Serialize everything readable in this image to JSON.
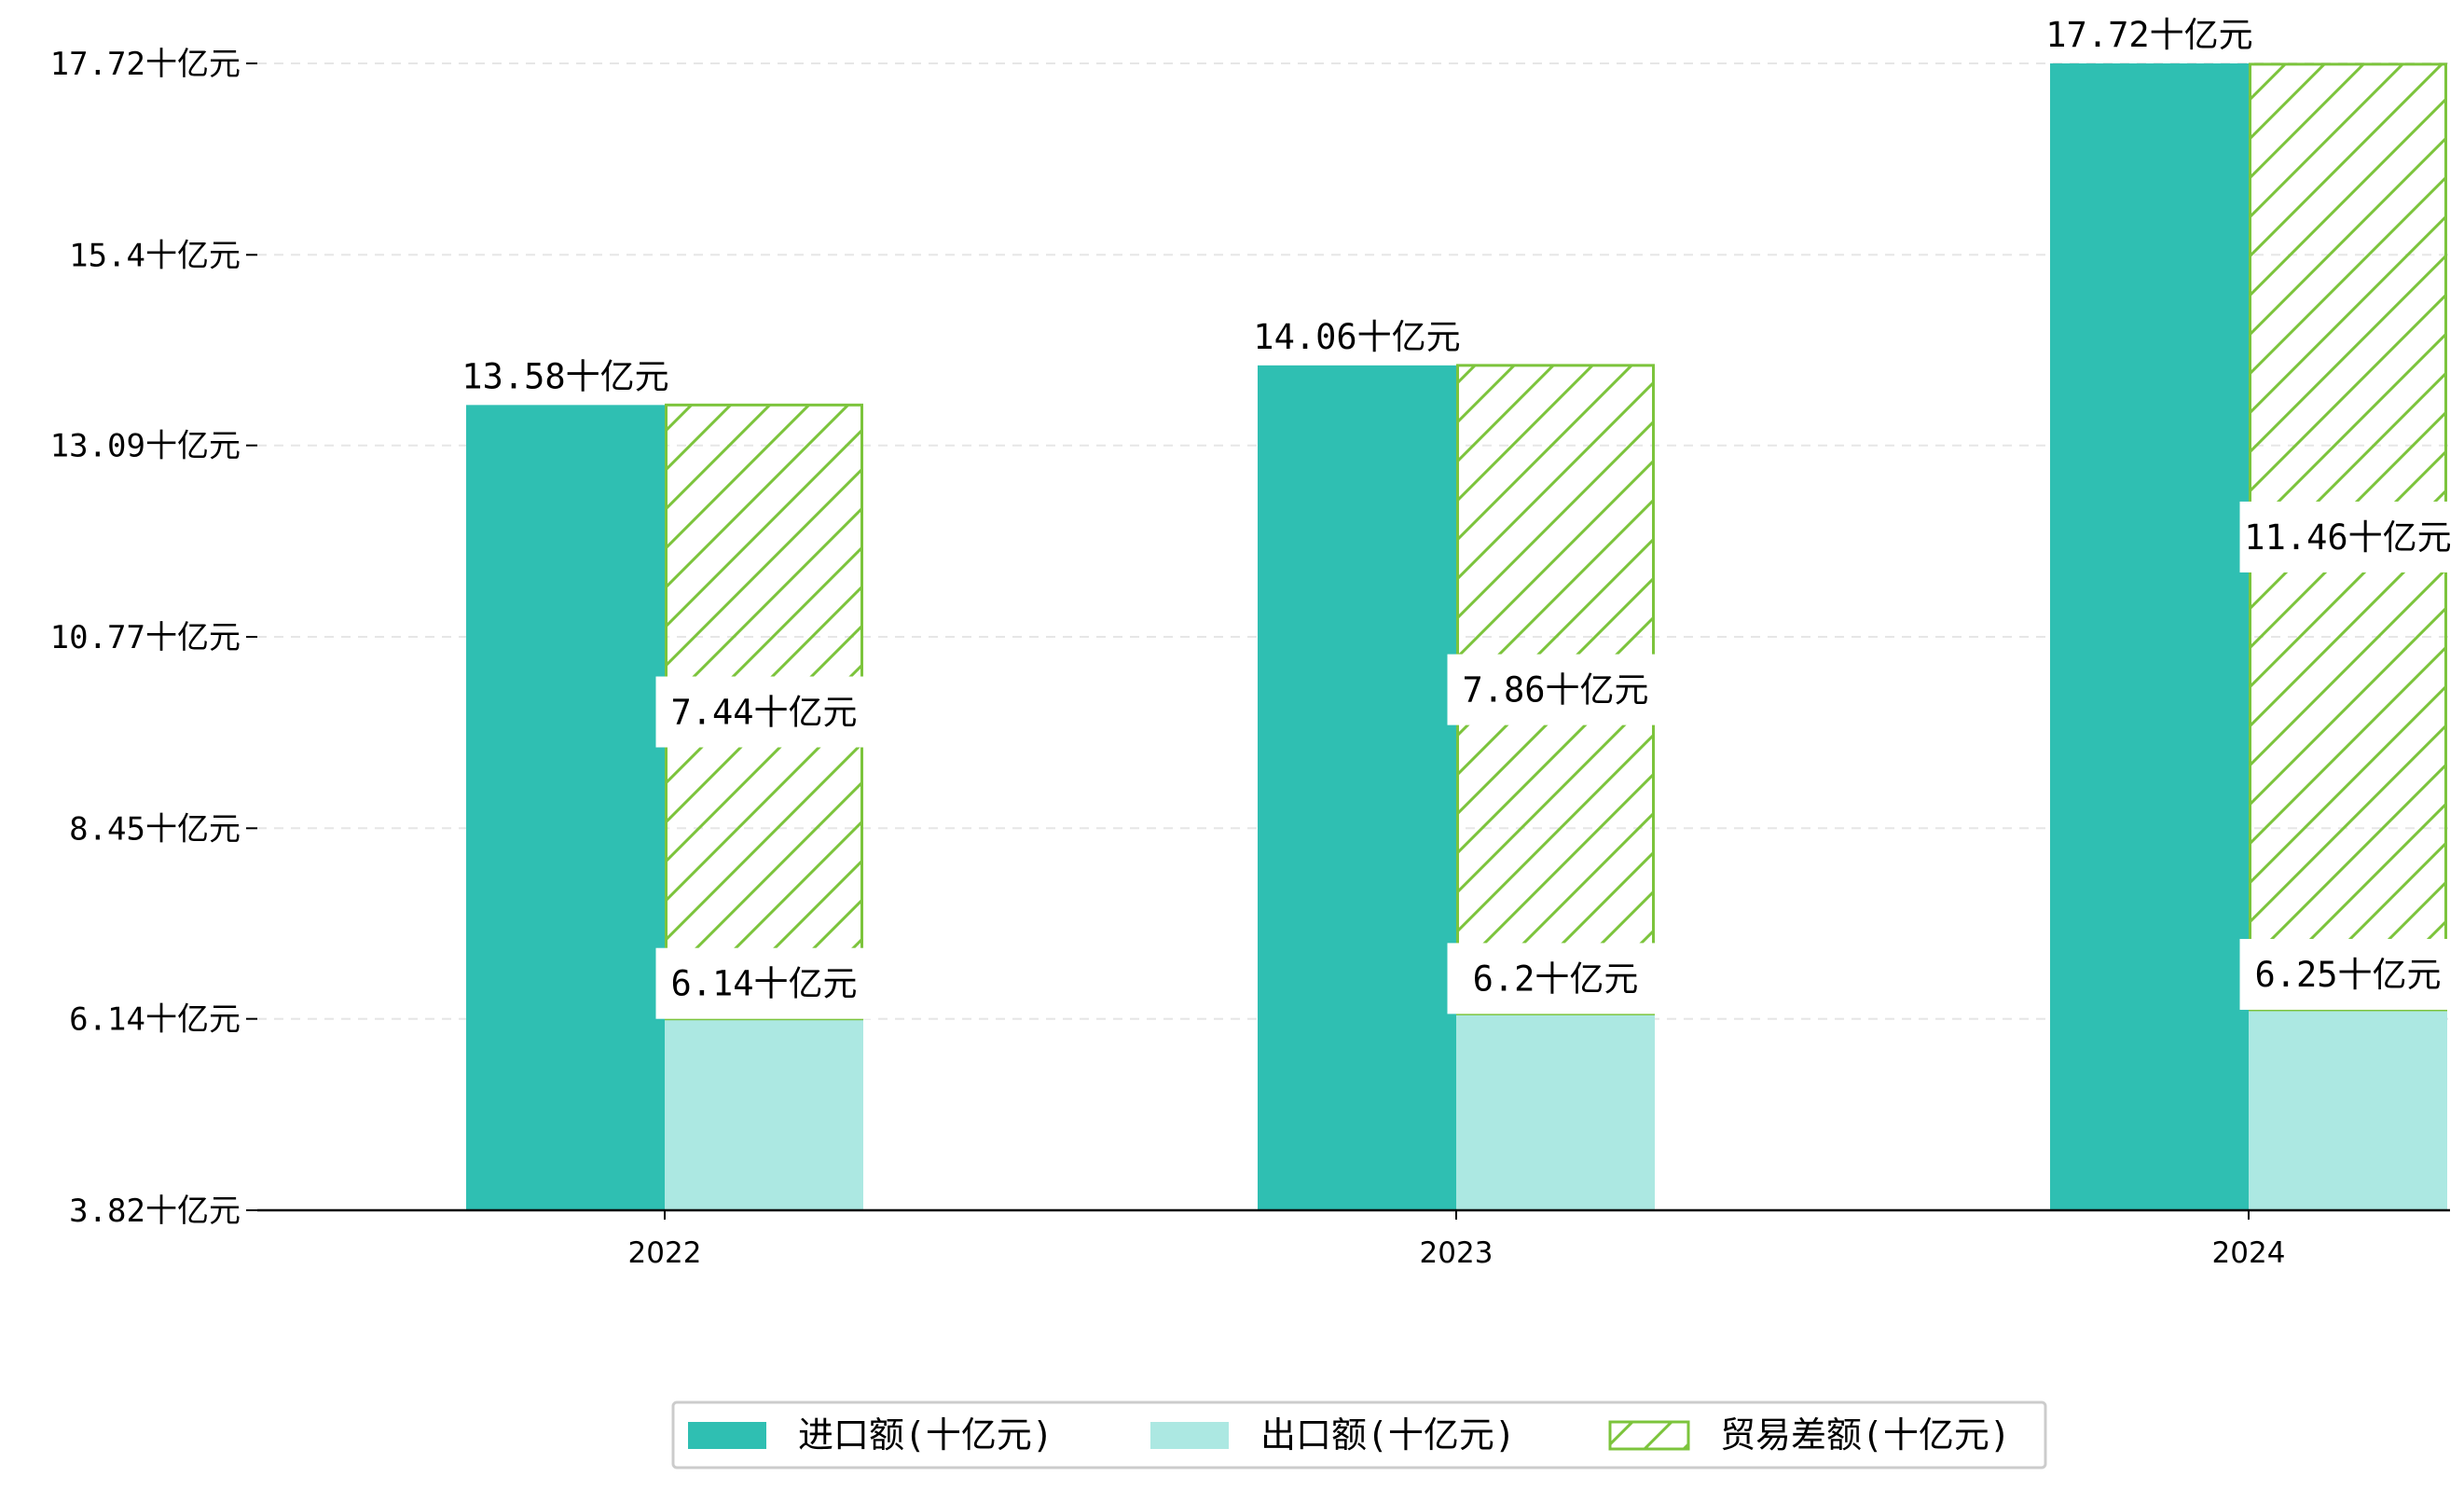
{
  "chart_data": {
    "type": "bar",
    "categories": [
      "2022",
      "2023",
      "2024"
    ],
    "series": [
      {
        "name": "进口额(十亿元)",
        "values": [
          13.58,
          14.06,
          17.72
        ],
        "color": "#2fbfb2"
      },
      {
        "name": "出口额(十亿元)",
        "values": [
          6.14,
          6.2,
          6.25
        ],
        "color": "#ace8e2"
      },
      {
        "name": "贸易差额(十亿元)",
        "values": [
          7.44,
          7.86,
          11.46
        ],
        "color": "#7cc43c",
        "hatch": "diagonal",
        "stacked_on": "出口额(十亿元)"
      }
    ],
    "data_labels": {
      "import": [
        "13.58十亿元",
        "14.06十亿元",
        "17.72十亿元"
      ],
      "export": [
        "6.14十亿元",
        "6.2十亿元",
        "6.25十亿元"
      ],
      "balance": [
        "7.44十亿元",
        "7.86十亿元",
        "11.46十亿元"
      ]
    },
    "y_ticks": [
      3.82,
      6.14,
      8.45,
      10.77,
      13.09,
      15.4,
      17.72
    ],
    "y_tick_labels": [
      "3.82十亿元",
      "6.14十亿元",
      "8.45十亿元",
      "10.77十亿元",
      "13.09十亿元",
      "15.4十亿元",
      "17.72十亿元"
    ],
    "ylim": [
      3.82,
      17.72
    ],
    "grid": "horizontal dashed",
    "legend_position": "bottom-center",
    "title": "",
    "xlabel": "",
    "ylabel": ""
  }
}
